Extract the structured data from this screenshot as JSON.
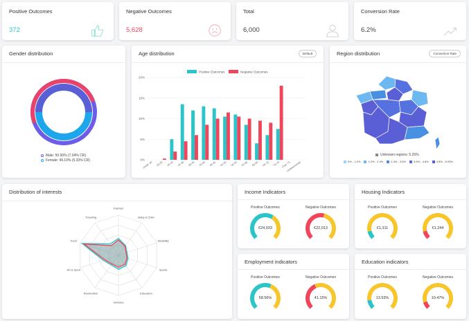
{
  "kpis": [
    {
      "title": "Positive Outcomes",
      "value": "372",
      "color": "#2bc4c9",
      "icon": "thumbs-up-icon"
    },
    {
      "title": "Negative Outcomes",
      "value": "5,628",
      "color": "#f0465b",
      "icon": "sad-face-icon"
    },
    {
      "title": "Total",
      "value": "6,000",
      "color": "#444444",
      "icon": "user-icon"
    },
    {
      "title": "Conversion Rate",
      "value": "6.2%",
      "color": "#444444",
      "icon": "trend-up-icon"
    }
  ],
  "gender": {
    "title": "Gender distribution",
    "male_label": "Male: 50.90% (7.04% CR)",
    "female_label": "Female: 49.10% (5.33% CR)",
    "colors": {
      "outer": "#e8436a",
      "outer2": "#6c5ce7",
      "inner": "#1ea6ec"
    }
  },
  "age": {
    "title": "Age distribution",
    "button": "Default"
  },
  "region": {
    "title": "Region distribution",
    "button": "Conversion Rate",
    "unknown": "Unknown regions: 5.25%",
    "legend": [
      {
        "label": "0% - 1.2%",
        "color": "#9fd3f5"
      },
      {
        "label": "1.2% - 2.4%",
        "color": "#6db8f0"
      },
      {
        "label": "2.4% - 3.6%",
        "color": "#4a90e2"
      },
      {
        "label": "3.6% - 4.8%",
        "color": "#5572e0"
      },
      {
        "label": "4.8% - 6.03%",
        "color": "#5b5fd6"
      }
    ]
  },
  "interests": {
    "title": "Distribution of interests",
    "axes": [
      "Fashion",
      "Baby & Child",
      "Disability",
      "Sports",
      "Education",
      "Vehicles",
      "Restoration",
      "Art & Sport",
      "Food",
      "Traveling"
    ]
  },
  "indicators": [
    {
      "title": "Income Indicators",
      "pos_label": "Positive Outcomes",
      "neg_label": "Negative Outcomes",
      "pos_value": "€24,033",
      "neg_value": "€22,013",
      "pos_frac": 0.62,
      "neg_frac": 0.55
    },
    {
      "title": "Housing Indicators",
      "pos_label": "Positive Outcomes",
      "neg_label": "Negative Outcomes",
      "pos_value": "€1,311",
      "neg_value": "€1,244",
      "pos_frac": 0.12,
      "neg_frac": 0.12
    },
    {
      "title": "Employment indicators",
      "pos_label": "Positive Outcomes",
      "neg_label": "Negative Outcomes",
      "pos_value": "58.56%",
      "neg_value": "41.15%",
      "pos_frac": 0.5856,
      "neg_frac": 0.4115
    },
    {
      "title": "Education indicators",
      "pos_label": "Positive Outcomes",
      "neg_label": "Negative Outcomes",
      "pos_value": "13.53%",
      "neg_value": "10.47%",
      "pos_frac": 0.1353,
      "neg_frac": 0.1047
    }
  ],
  "colors": {
    "positive": "#2bc4c9",
    "negative": "#f0465b",
    "gauge_rest": "#f7c52c"
  },
  "chart_data": {
    "type": "bar",
    "categories": [
      "Under 18",
      "18-20",
      "20-25",
      "25-30",
      "30-35",
      "35-40",
      "40-45",
      "45-50",
      "50-55",
      "55-60",
      "60-65",
      "65-70",
      "70-75",
      "Over 75",
      "Undetermined"
    ],
    "series": [
      {
        "name": "Positive Outcomes",
        "values": [
          0,
          0,
          5,
          13.5,
          12,
          13,
          12.5,
          10.5,
          11,
          8.5,
          4,
          6,
          7.5,
          0,
          0
        ]
      },
      {
        "name": "Negative Outcomes",
        "values": [
          0,
          0.3,
          2,
          4.5,
          6,
          8.5,
          10,
          11.5,
          10.5,
          10,
          9.5,
          9,
          18,
          0,
          0
        ]
      }
    ],
    "ylabel": "",
    "yticks": [
      "0%",
      "5%",
      "10%",
      "15%",
      "20%"
    ],
    "ylim": [
      0,
      20
    ]
  }
}
